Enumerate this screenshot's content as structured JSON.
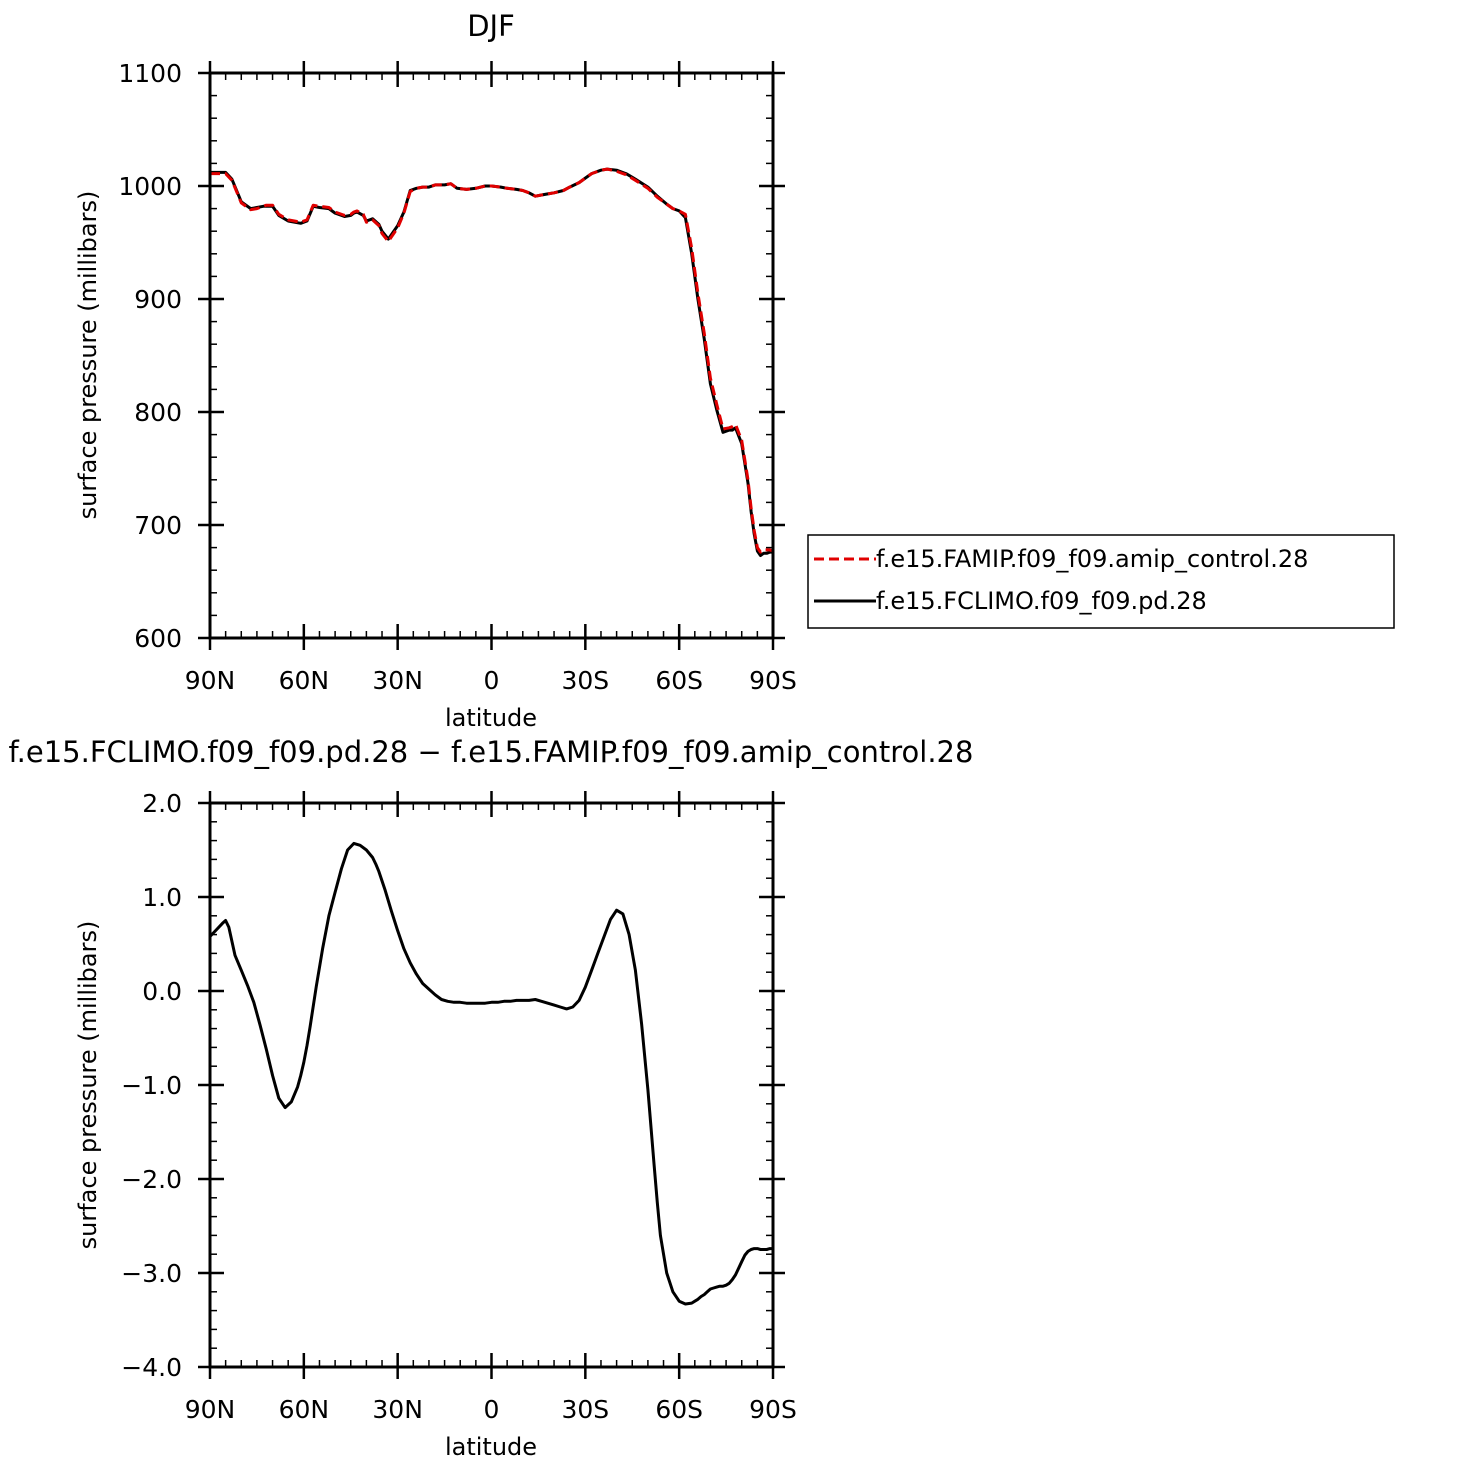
{
  "chart_data": [
    {
      "type": "line",
      "title": "DJF",
      "xlabel": "latitude",
      "ylabel": "surface pressure (millibars)",
      "xlim": [
        90,
        -90
      ],
      "ylim": [
        600,
        1100
      ],
      "x_ticks": [
        {
          "value": 90,
          "label": "90N"
        },
        {
          "value": 60,
          "label": "60N"
        },
        {
          "value": 30,
          "label": "30N"
        },
        {
          "value": 0,
          "label": "0"
        },
        {
          "value": -30,
          "label": "30S"
        },
        {
          "value": -60,
          "label": "60S"
        },
        {
          "value": -90,
          "label": "90S"
        }
      ],
      "y_ticks": [
        {
          "value": 1100,
          "label": "1100"
        },
        {
          "value": 1000,
          "label": "1000"
        },
        {
          "value": 900,
          "label": "900"
        },
        {
          "value": 800,
          "label": "800"
        },
        {
          "value": 700,
          "label": "700"
        },
        {
          "value": 600,
          "label": "600"
        }
      ],
      "legend_position": "right",
      "series": [
        {
          "name": "f.e15.FAMIP.f09_f09.amip_control.28",
          "color": "#e00000",
          "dash": "dashed",
          "x": [
            90,
            87,
            85,
            83,
            80,
            77,
            75,
            73,
            72,
            70,
            68,
            65,
            63,
            61,
            59,
            57,
            55,
            52,
            50,
            47,
            45,
            44,
            43,
            41,
            40,
            38,
            36,
            35,
            33,
            30,
            28,
            26,
            24,
            22,
            20,
            18,
            15,
            13,
            11,
            8,
            5,
            2,
            0,
            -3,
            -5,
            -8,
            -10,
            -12,
            -14,
            -16,
            -18,
            -20,
            -23,
            -25,
            -28,
            -30,
            -32,
            -35,
            -37,
            -40,
            -43,
            -46,
            -50,
            -53,
            -56,
            -58,
            -60,
            -62,
            -64,
            -66,
            -68,
            -70,
            -72,
            -74,
            -76,
            -77,
            -78,
            -80,
            -82,
            -83,
            -84,
            -85,
            -86,
            -87,
            -88,
            -89,
            -90
          ],
          "y": [
            1011,
            1011,
            1011,
            1005,
            985,
            979,
            980,
            982,
            983,
            983,
            975,
            970,
            969,
            968,
            970,
            983,
            982,
            981,
            977,
            974,
            975,
            977,
            978,
            975,
            968,
            970,
            965,
            958,
            951,
            963,
            976,
            995,
            998,
            999,
            999,
            1001,
            1001,
            1002,
            998,
            997,
            998,
            1000,
            1000,
            999,
            998,
            997,
            996,
            994,
            991,
            992,
            993,
            994,
            996,
            999,
            1003,
            1007,
            1011,
            1014,
            1015,
            1013,
            1010,
            1005,
            998,
            990,
            984,
            980,
            978,
            975,
            945,
            905,
            870,
            830,
            807,
            785,
            786,
            787,
            789,
            775,
            740,
            715,
            695,
            680,
            676,
            678,
            678,
            678,
            677
          ]
        },
        {
          "name": "f.e15.FCLIMO.f09_f09.pd.28",
          "color": "#000000",
          "dash": "solid",
          "x": [
            90,
            87,
            85,
            83,
            80,
            77,
            75,
            73,
            72,
            70,
            68,
            65,
            63,
            61,
            59,
            57,
            55,
            52,
            50,
            47,
            45,
            44,
            43,
            41,
            40,
            38,
            36,
            35,
            33,
            30,
            28,
            26,
            24,
            22,
            20,
            18,
            15,
            13,
            11,
            8,
            5,
            2,
            0,
            -3,
            -5,
            -8,
            -10,
            -12,
            -14,
            -16,
            -18,
            -20,
            -23,
            -25,
            -28,
            -30,
            -32,
            -35,
            -37,
            -40,
            -43,
            -46,
            -50,
            -53,
            -56,
            -58,
            -60,
            -62,
            -64,
            -66,
            -68,
            -70,
            -72,
            -74,
            -76,
            -77,
            -78,
            -80,
            -82,
            -83,
            -84,
            -85,
            -86,
            -87,
            -88,
            -89,
            -90
          ],
          "y": [
            1012,
            1012,
            1012,
            1006,
            986,
            980,
            981,
            982,
            982,
            982,
            974,
            969,
            968,
            967,
            969,
            982,
            981,
            980,
            976,
            973,
            974,
            976,
            977,
            974,
            969,
            971,
            966,
            960,
            953,
            965,
            977,
            996,
            998,
            999,
            999,
            1001,
            1001,
            1002,
            998,
            997,
            998,
            1000,
            1000,
            999,
            998,
            997,
            996,
            994,
            991,
            992,
            993,
            994,
            996,
            999,
            1003,
            1007,
            1011,
            1014,
            1015,
            1014,
            1011,
            1006,
            999,
            991,
            984,
            980,
            978,
            972,
            940,
            900,
            865,
            825,
            802,
            782,
            784,
            784,
            786,
            772,
            737,
            712,
            692,
            677,
            673,
            675,
            675,
            676,
            676
          ]
        }
      ]
    },
    {
      "type": "line",
      "title": "f.e15.FCLIMO.f09_f09.pd.28 − f.e15.FAMIP.f09_f09.amip_control.28",
      "xlabel": "latitude",
      "ylabel": "surface pressure (millibars)",
      "xlim": [
        90,
        -90
      ],
      "ylim": [
        -4.0,
        2.0
      ],
      "x_ticks": [
        {
          "value": 90,
          "label": "90N"
        },
        {
          "value": 60,
          "label": "60N"
        },
        {
          "value": 30,
          "label": "30N"
        },
        {
          "value": 0,
          "label": "0"
        },
        {
          "value": -30,
          "label": "30S"
        },
        {
          "value": -60,
          "label": "60S"
        },
        {
          "value": -90,
          "label": "90S"
        }
      ],
      "y_ticks": [
        {
          "value": 2.0,
          "label": "2.0"
        },
        {
          "value": 1.0,
          "label": "1.0"
        },
        {
          "value": 0.0,
          "label": "0.0"
        },
        {
          "value": -1.0,
          "label": "−1.0"
        },
        {
          "value": -2.0,
          "label": "−2.0"
        },
        {
          "value": -3.0,
          "label": "−3.0"
        },
        {
          "value": -4.0,
          "label": "−4.0"
        }
      ],
      "series": [
        {
          "color": "#000000",
          "dash": "solid",
          "x": [
            90,
            88,
            86,
            85,
            84,
            82,
            80,
            78,
            76,
            74,
            72,
            70,
            68,
            66,
            64,
            62,
            61,
            60,
            59,
            58,
            56,
            54,
            52,
            50,
            48,
            46,
            44,
            42,
            40,
            38,
            37,
            36,
            34,
            32,
            30,
            28,
            26,
            24,
            22,
            20,
            18,
            16,
            14,
            12,
            10,
            8,
            6,
            4,
            2,
            0,
            -2,
            -4,
            -6,
            -8,
            -10,
            -12,
            -14,
            -16,
            -18,
            -20,
            -22,
            -24,
            -26,
            -28,
            -30,
            -32,
            -33,
            -34,
            -36,
            -38,
            -40,
            -42,
            -44,
            -46,
            -48,
            -50,
            -51,
            -52,
            -53,
            -54,
            -56,
            -58,
            -60,
            -62,
            -64,
            -65,
            -66,
            -67,
            -68,
            -69,
            -70,
            -71,
            -72,
            -73,
            -74,
            -75,
            -76,
            -77,
            -78,
            -79,
            -80,
            -81,
            -82,
            -83,
            -84,
            -85,
            -86,
            -87,
            -88,
            -89,
            -90
          ],
          "y": [
            0.58,
            0.65,
            0.72,
            0.75,
            0.68,
            0.38,
            0.22,
            0.06,
            -0.12,
            -0.36,
            -0.62,
            -0.9,
            -1.14,
            -1.24,
            -1.18,
            -1.02,
            -0.9,
            -0.76,
            -0.58,
            -0.38,
            0.05,
            0.45,
            0.8,
            1.05,
            1.3,
            1.5,
            1.57,
            1.55,
            1.5,
            1.42,
            1.35,
            1.27,
            1.07,
            0.85,
            0.64,
            0.45,
            0.3,
            0.18,
            0.08,
            0.02,
            -0.04,
            -0.09,
            -0.11,
            -0.12,
            -0.12,
            -0.13,
            -0.13,
            -0.13,
            -0.13,
            -0.12,
            -0.12,
            -0.11,
            -0.11,
            -0.1,
            -0.1,
            -0.1,
            -0.09,
            -0.11,
            -0.13,
            -0.15,
            -0.17,
            -0.19,
            -0.17,
            -0.1,
            0.04,
            0.22,
            0.31,
            0.4,
            0.58,
            0.76,
            0.86,
            0.82,
            0.6,
            0.22,
            -0.35,
            -1.05,
            -1.45,
            -1.85,
            -2.25,
            -2.6,
            -3.0,
            -3.2,
            -3.3,
            -3.33,
            -3.32,
            -3.3,
            -3.28,
            -3.25,
            -3.23,
            -3.2,
            -3.17,
            -3.16,
            -3.15,
            -3.14,
            -3.14,
            -3.13,
            -3.11,
            -3.07,
            -3.02,
            -2.95,
            -2.88,
            -2.81,
            -2.77,
            -2.75,
            -2.74,
            -2.74,
            -2.75,
            -2.75,
            -2.75,
            -2.74,
            -2.74
          ]
        }
      ]
    }
  ]
}
